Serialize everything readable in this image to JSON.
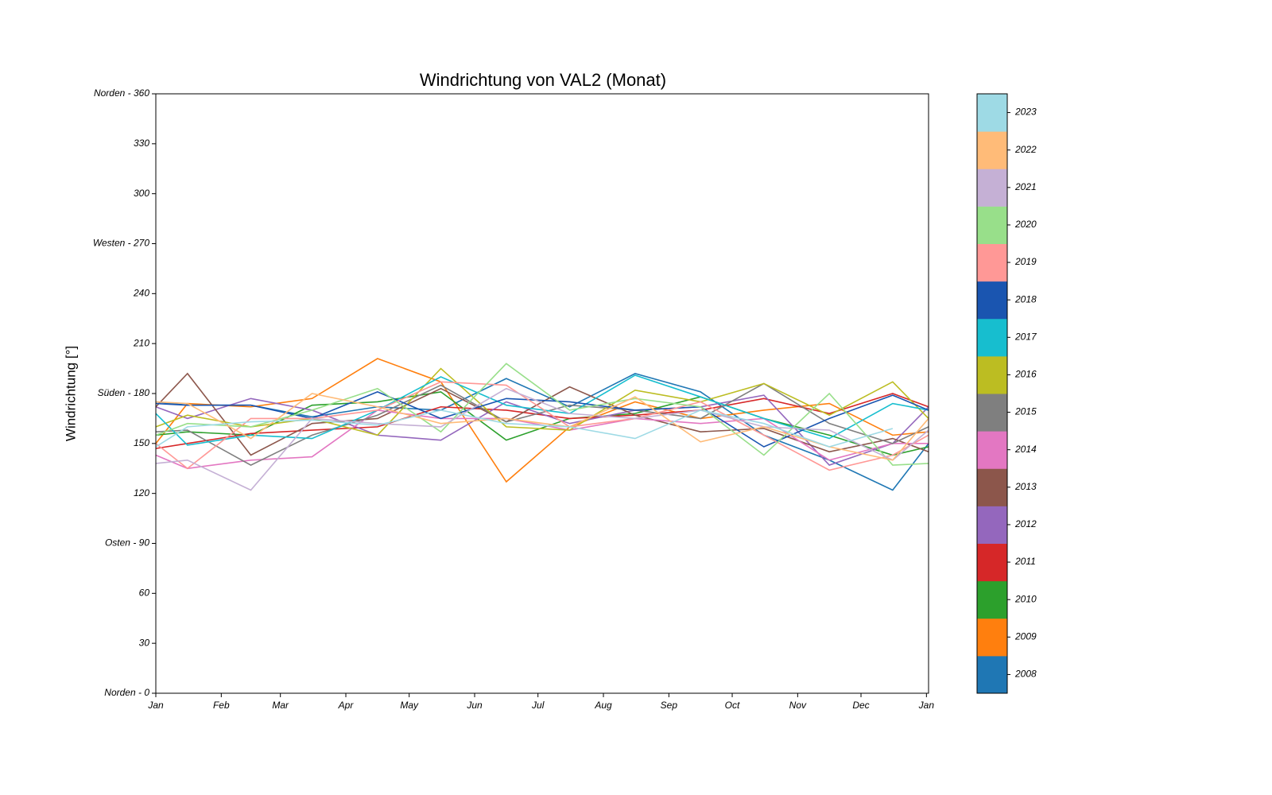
{
  "chart_data": {
    "type": "line",
    "title": "Windrichtung von VAL2 (Monat)",
    "y_label": "Windrichtung [°]",
    "x": [
      0,
      15,
      45,
      74,
      105,
      135,
      166,
      196,
      227,
      258,
      288,
      319,
      349,
      366
    ],
    "xlim": [
      0,
      366
    ],
    "xticks": [
      {
        "value": 0,
        "label": "Jan"
      },
      {
        "value": 31,
        "label": "Feb"
      },
      {
        "value": 59,
        "label": "Mar"
      },
      {
        "value": 90,
        "label": "Apr"
      },
      {
        "value": 120,
        "label": "May"
      },
      {
        "value": 151,
        "label": "Jun"
      },
      {
        "value": 181,
        "label": "Jul"
      },
      {
        "value": 212,
        "label": "Aug"
      },
      {
        "value": 243,
        "label": "Sep"
      },
      {
        "value": 273,
        "label": "Oct"
      },
      {
        "value": 304,
        "label": "Nov"
      },
      {
        "value": 334,
        "label": "Dec"
      },
      {
        "value": 365,
        "label": "Jan"
      }
    ],
    "ylim": [
      0,
      360
    ],
    "yticks": [
      {
        "value": 0,
        "label": "Norden - 0"
      },
      30,
      60,
      {
        "value": 90,
        "label": "Osten - 90"
      },
      120,
      150,
      {
        "value": 180,
        "label": "Süden - 180"
      },
      210,
      240,
      {
        "value": 270,
        "label": "Westen - 270"
      },
      300,
      330,
      {
        "value": 360,
        "label": "Norden - 360"
      }
    ],
    "legend": "colorbar",
    "series": [
      {
        "name": "2008",
        "color": "#1f77b4",
        "values": [
          175,
          173,
          173,
          166,
          172,
          170,
          189,
          172,
          192,
          181,
          155,
          140,
          122,
          150
        ]
      },
      {
        "name": "2009",
        "color": "#ff7f0e",
        "values": [
          150,
          174,
          172,
          177,
          201,
          187,
          127,
          160,
          175,
          165,
          170,
          174,
          155,
          157
        ]
      },
      {
        "name": "2010",
        "color": "#2ca02c",
        "values": [
          155,
          157,
          155,
          173,
          175,
          181,
          152,
          165,
          168,
          178,
          165,
          155,
          143,
          148
        ]
      },
      {
        "name": "2011",
        "color": "#d62728",
        "values": [
          147,
          150,
          156,
          158,
          160,
          172,
          170,
          165,
          167,
          170,
          177,
          168,
          180,
          172
        ]
      },
      {
        "name": "2012",
        "color": "#9467bd",
        "values": [
          172,
          165,
          177,
          170,
          155,
          152,
          175,
          162,
          170,
          172,
          179,
          137,
          150,
          172
        ]
      },
      {
        "name": "2013",
        "color": "#8c564b",
        "values": [
          172,
          192,
          143,
          162,
          165,
          183,
          163,
          184,
          167,
          157,
          159,
          145,
          153,
          145
        ]
      },
      {
        "name": "2014",
        "color": "#e377c2",
        "values": [
          143,
          135,
          140,
          142,
          170,
          165,
          165,
          158,
          165,
          162,
          165,
          140,
          150,
          150
        ]
      },
      {
        "name": "2015",
        "color": "#7f7f7f",
        "values": [
          157,
          158,
          137,
          155,
          167,
          185,
          163,
          173,
          170,
          165,
          186,
          162,
          150,
          160
        ]
      },
      {
        "name": "2016",
        "color": "#bcbd22",
        "values": [
          160,
          167,
          160,
          165,
          155,
          195,
          160,
          158,
          182,
          175,
          186,
          167,
          187,
          165
        ]
      },
      {
        "name": "2017",
        "color": "#17becf",
        "values": [
          168,
          149,
          155,
          153,
          170,
          190,
          173,
          168,
          191,
          178,
          165,
          153,
          174,
          170
        ]
      },
      {
        "name": "2018",
        "color": "#1a55b0",
        "values": [
          174,
          173,
          173,
          165,
          181,
          165,
          177,
          175,
          170,
          172,
          148,
          165,
          179,
          170
        ]
      },
      {
        "name": "2019",
        "color": "#ff9896",
        "values": [
          150,
          135,
          165,
          165,
          170,
          187,
          185,
          160,
          165,
          175,
          155,
          134,
          143,
          155
        ]
      },
      {
        "name": "2020",
        "color": "#98df8a",
        "values": [
          155,
          162,
          160,
          170,
          183,
          157,
          198,
          170,
          177,
          172,
          143,
          180,
          137,
          138
        ]
      },
      {
        "name": "2021",
        "color": "#c5b0d5",
        "values": [
          138,
          140,
          122,
          165,
          162,
          160,
          183,
          168,
          165,
          170,
          160,
          158,
          140,
          158
        ]
      },
      {
        "name": "2022",
        "color": "#ffbb78",
        "values": [
          175,
          174,
          153,
          180,
          172,
          162,
          165,
          160,
          178,
          151,
          160,
          148,
          140,
          165
        ]
      },
      {
        "name": "2023",
        "color": "#9edae5",
        "values": [
          148,
          160,
          163,
          164,
          161,
          170,
          162,
          160,
          153,
          170,
          162,
          148,
          159,
          null
        ]
      }
    ]
  }
}
